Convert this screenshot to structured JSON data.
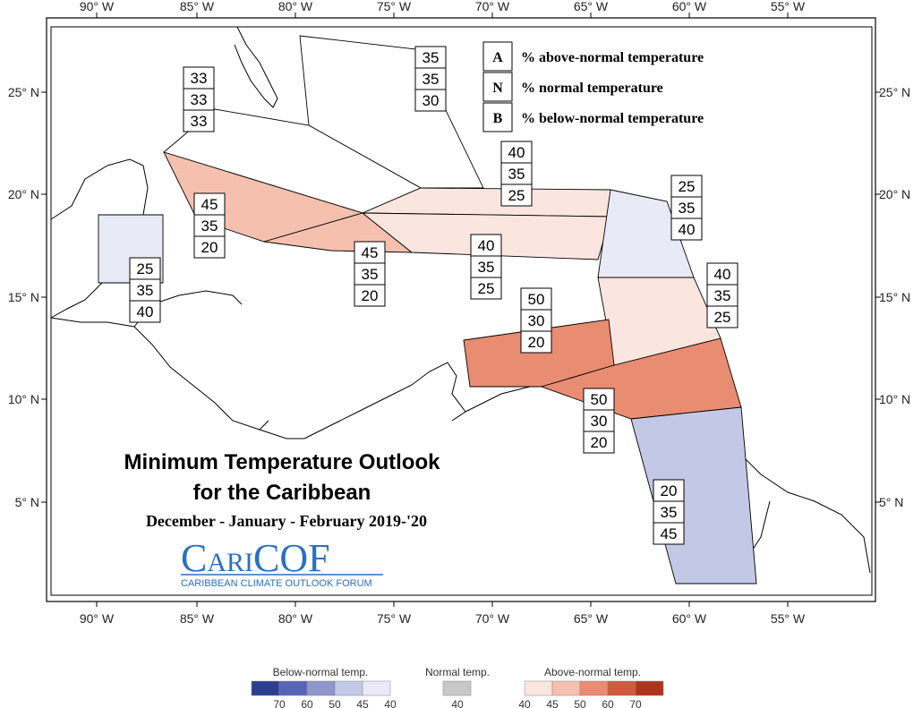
{
  "axes": {
    "top_ticks": [
      "90° W",
      "85° W",
      "80° W",
      "75° W",
      "70° W",
      "65° W",
      "60° W",
      "55° W"
    ],
    "bottom_ticks": [
      "90° W",
      "85° W",
      "80° W",
      "75° W",
      "70° W",
      "65° W",
      "60° W",
      "55° W"
    ],
    "left_ticks": [
      "25° N",
      "20° N",
      "15° N",
      "10° N",
      "5° N"
    ],
    "right_ticks": [
      "25° N",
      "20° N",
      "15° N",
      "10° N",
      "5° N"
    ]
  },
  "key": {
    "a_letter": "A",
    "a_text": "% above-normal temperature",
    "n_letter": "N",
    "n_text": "% normal temperature",
    "b_letter": "B",
    "b_text": "% below-normal temperature"
  },
  "title": {
    "line1": "Minimum Temperature Outlook",
    "line2": "for the Caribbean",
    "period": "December - January - February 2019-'20"
  },
  "logo": {
    "text_c": "C",
    "text_ari": "ARI",
    "text_cof": "COF",
    "tagline": "CARIBBEAN CLIMATE OUTLOOK FORUM"
  },
  "legend": {
    "below_title": "Below-normal temp.",
    "normal_title": "Normal temp.",
    "above_title": "Above-normal temp.",
    "below_ticks": [
      "70",
      "60",
      "50",
      "45",
      "40"
    ],
    "normal_ticks": [
      "40"
    ],
    "above_ticks": [
      "40",
      "45",
      "50",
      "60",
      "70"
    ],
    "below_colors": [
      "#2b3e8f",
      "#5666b5",
      "#8e96cc",
      "#c3c8e6",
      "#e8ebf6"
    ],
    "normal_color": "#c8c8c8",
    "above_colors": [
      "#fbe6df",
      "#f5c1ae",
      "#e88c72",
      "#cf5a3d",
      "#b0331e"
    ]
  },
  "regions": [
    {
      "id": "bahamas",
      "above": "35",
      "normal": "35",
      "below": "30",
      "color": "#ffffff"
    },
    {
      "id": "cuba",
      "above": "33",
      "normal": "33",
      "below": "33",
      "color": "#ffffff"
    },
    {
      "id": "western-caribbean",
      "above": "45",
      "normal": "35",
      "below": "20",
      "color": "#f5c1ae"
    },
    {
      "id": "jamaica",
      "above": "45",
      "normal": "35",
      "below": "20",
      "color": "#f5c1ae"
    },
    {
      "id": "hispaniola-north",
      "above": "40",
      "normal": "35",
      "below": "25",
      "color": "#fbe6df"
    },
    {
      "id": "hispaniola-south",
      "above": "40",
      "normal": "35",
      "below": "25",
      "color": "#fbe6df"
    },
    {
      "id": "leeward-islands",
      "above": "25",
      "normal": "35",
      "below": "40",
      "color": "#e8ebf6"
    },
    {
      "id": "windward-islands",
      "above": "40",
      "normal": "35",
      "below": "25",
      "color": "#fbe6df"
    },
    {
      "id": "belize",
      "above": "25",
      "normal": "35",
      "below": "40",
      "color": "#e8ebf6"
    },
    {
      "id": "abc-islands",
      "above": "50",
      "normal": "30",
      "below": "20",
      "color": "#e88c72"
    },
    {
      "id": "trinidad",
      "above": "50",
      "normal": "30",
      "below": "20",
      "color": "#e88c72"
    },
    {
      "id": "guianas",
      "above": "20",
      "normal": "35",
      "below": "45",
      "color": "#c3c8e6"
    }
  ]
}
